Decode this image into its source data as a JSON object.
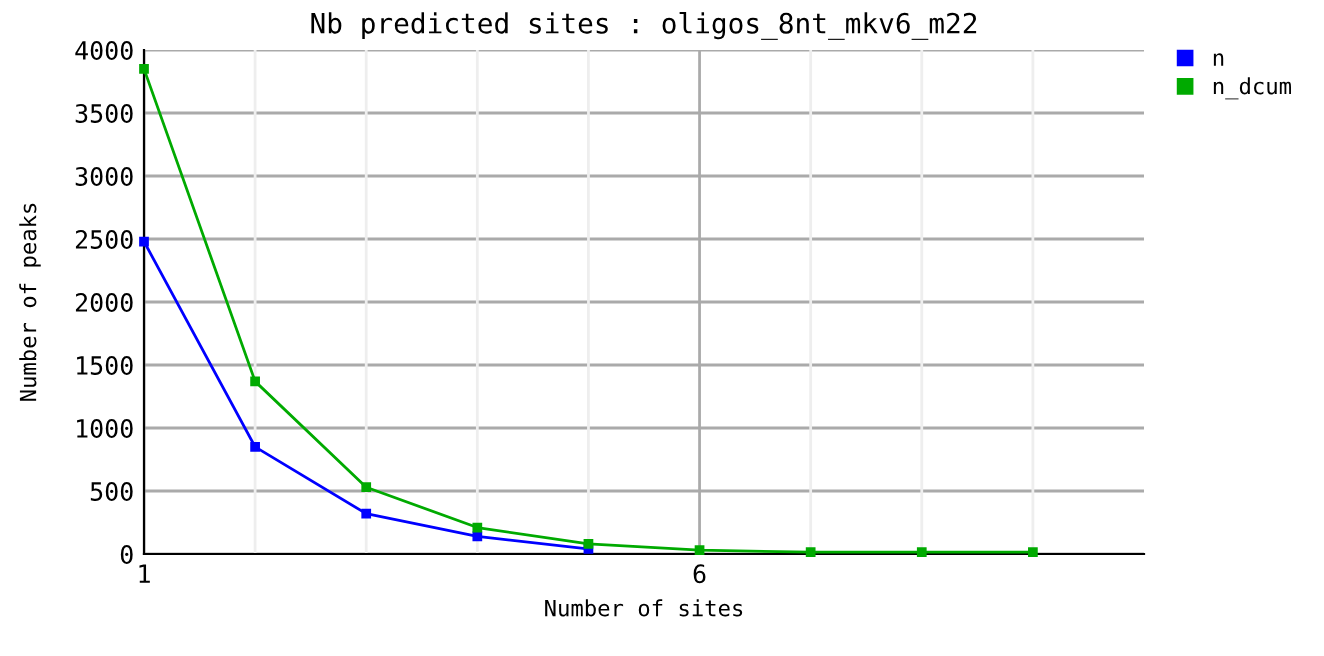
{
  "chart_data": {
    "type": "line",
    "title": "Nb predicted sites : oligos_8nt_mkv6_m22",
    "xlabel": "Number of sites",
    "ylabel": "Number of peaks",
    "x": [
      1,
      2,
      3,
      4,
      5,
      6,
      7,
      8,
      9
    ],
    "series": [
      {
        "name": "n",
        "color": "#0000ff",
        "values": [
          2480,
          850,
          320,
          140,
          40,
          null,
          null,
          null,
          null
        ]
      },
      {
        "name": "n_dcum",
        "color": "#00aa00",
        "values": [
          3850,
          1370,
          530,
          210,
          80,
          30,
          15,
          15,
          15
        ]
      }
    ],
    "xlim": [
      1,
      10
    ],
    "ylim": [
      0,
      4000
    ],
    "xticks": [
      1,
      {
        "value": 2,
        "label": null
      },
      {
        "value": 3,
        "label": null
      },
      {
        "value": 4,
        "label": null
      },
      {
        "value": 5,
        "label": null
      },
      6,
      {
        "value": 7,
        "label": null
      },
      {
        "value": 8,
        "label": null
      },
      {
        "value": 9,
        "label": null
      }
    ],
    "yticks": [
      0,
      500,
      1000,
      1500,
      2000,
      2500,
      3000,
      3500,
      4000
    ],
    "grid": true,
    "legend": "top right",
    "marker": "square",
    "line_style": "solid"
  }
}
